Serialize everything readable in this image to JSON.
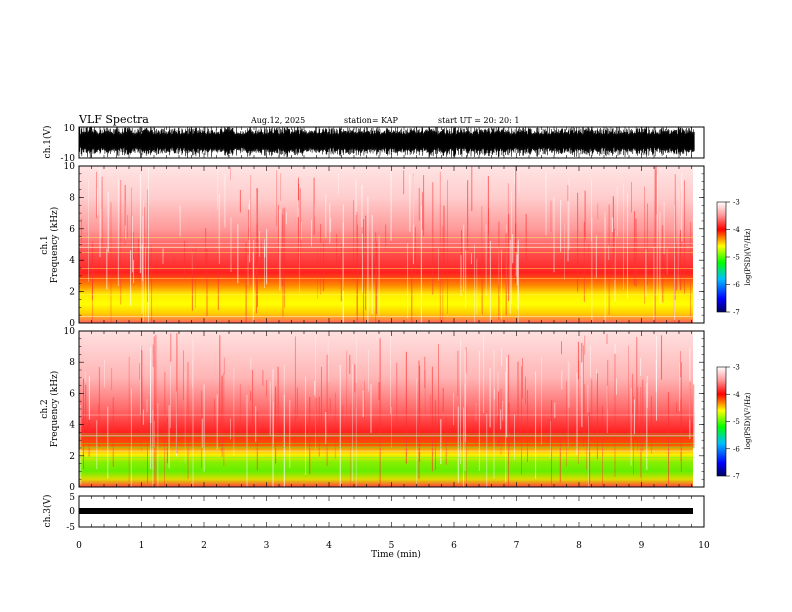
{
  "header": {
    "title": "VLF Spectra",
    "date": "Aug.12, 2025",
    "station": "station= KAP",
    "start_ut": "start  UT  =   20: 20: 1"
  },
  "colors": {
    "background": "#ffffff",
    "waveform": "#000000",
    "spectrum_low": "#ff0000",
    "spectrum_high": "#ffff00",
    "spectrum_peak": "#00dd00"
  },
  "chart_data": [
    {
      "type": "line",
      "name": "ch.1 waveform",
      "ylabel": "ch.1(V)",
      "ylim": [
        -10,
        10
      ],
      "yticks": [
        "10",
        "-10"
      ],
      "x_range_min": [
        0,
        9.85
      ],
      "amplitude_envelope": [
        -10,
        10
      ]
    },
    {
      "type": "heatmap",
      "name": "ch.1 spectrogram",
      "ylabel": "ch.1\nFrequency (kHz)",
      "ylim": [
        0,
        10
      ],
      "yticks": [
        "0",
        "2",
        "4",
        "6",
        "8",
        "10"
      ],
      "band_peak_khz": [
        0.8,
        3.5
      ],
      "colorbar": {
        "label": "log(PSD)(V²/Hz)",
        "ticks": [
          "-3",
          "-4",
          "-5",
          "-6",
          "-7"
        ],
        "range": [
          -7,
          -3
        ]
      }
    },
    {
      "type": "heatmap",
      "name": "ch.2 spectrogram",
      "ylabel": "ch.2\nFrequency (kHz)",
      "ylim": [
        0,
        10
      ],
      "yticks": [
        "0",
        "2",
        "4",
        "6",
        "8",
        "10"
      ],
      "band_peak_khz": [
        0.5,
        3.0
      ],
      "colorbar": {
        "label": "log(PSD)(V²/Hz)",
        "ticks": [
          "-3",
          "-4",
          "-5",
          "-6",
          "-7"
        ],
        "range": [
          -7,
          -3
        ]
      }
    },
    {
      "type": "line",
      "name": "ch.3 waveform",
      "ylabel": "ch.3(V)",
      "ylim": [
        -5,
        5
      ],
      "yticks": [
        "5",
        "0",
        "-5"
      ],
      "x_range_min": [
        0,
        9.85
      ],
      "amplitude_envelope": [
        -0.5,
        0.5
      ]
    }
  ],
  "x_axis": {
    "label": "Time  (min)",
    "ticks": [
      "0",
      "1",
      "2",
      "3",
      "4",
      "5",
      "6",
      "7",
      "8",
      "9",
      "10"
    ],
    "xlim": [
      0,
      10
    ]
  },
  "colorbar_labels": {
    "upper": "log(PSD)(V²/Hz)",
    "lower": "log(PSD)(V²/Hz)"
  }
}
